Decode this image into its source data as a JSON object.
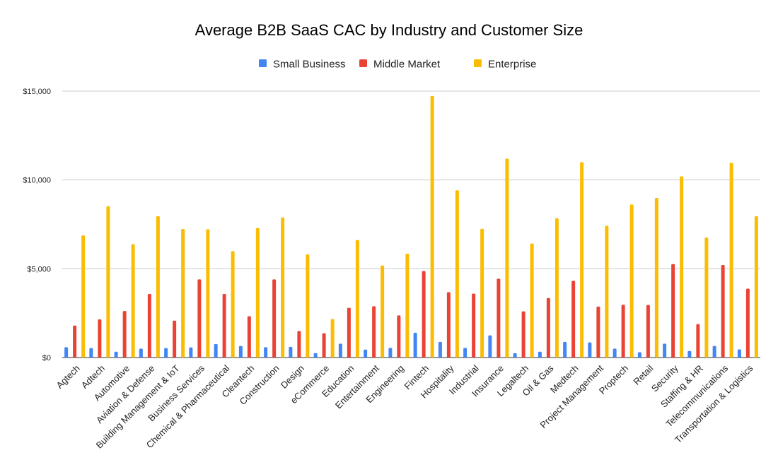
{
  "chart_data": {
    "type": "bar",
    "title": "Average B2B SaaS CAC by Industry and Customer Size",
    "xlabel": "",
    "ylabel": "",
    "ylim": [
      0,
      15000
    ],
    "yticks": [
      0,
      5000,
      10000,
      15000
    ],
    "ytick_labels": [
      "$0",
      "$5,000",
      "$10,000",
      "$15,000"
    ],
    "grid": true,
    "legend_position": "top-center",
    "categories": [
      "Agtech",
      "Adtech",
      "Automotive",
      "Aviation & Defense",
      "Building Management & IoT",
      "Business Services",
      "Chemical & Pharmaceutical",
      "Cleantech",
      "Construction",
      "Design",
      "eCommerce",
      "Education",
      "Entertainment",
      "Engineering",
      "Fintech",
      "Hospitality",
      "Industrial",
      "Insurance",
      "Legaltech",
      "Oil & Gas",
      "Medtech",
      "Project Management",
      "Proptech",
      "Retail",
      "Security",
      "Staffing & HR",
      "Telecommunications",
      "Transportation & Logistics"
    ],
    "series": [
      {
        "name": "Small Business",
        "color": "#4285f4",
        "values": [
          580,
          530,
          330,
          500,
          530,
          570,
          760,
          650,
          580,
          600,
          250,
          780,
          450,
          540,
          1400,
          880,
          540,
          1250,
          250,
          330,
          880,
          850,
          500,
          300,
          780,
          370,
          650,
          460
        ]
      },
      {
        "name": "Middle Market",
        "color": "#ea4335",
        "values": [
          1800,
          2150,
          2620,
          3580,
          2080,
          4400,
          3580,
          2330,
          4400,
          1490,
          1370,
          2800,
          2890,
          2370,
          4870,
          3680,
          3600,
          4440,
          2600,
          3350,
          4320,
          2870,
          2970,
          2960,
          5260,
          1880,
          5210,
          3880
        ]
      },
      {
        "name": "Enterprise",
        "color": "#fbbc04",
        "values": [
          6880,
          8520,
          6380,
          7960,
          7240,
          7220,
          5990,
          7290,
          7890,
          5810,
          2170,
          6620,
          5180,
          5850,
          14730,
          9420,
          7250,
          11200,
          6420,
          7840,
          11000,
          7420,
          8620,
          8990,
          10200,
          6750,
          10960,
          7960
        ]
      }
    ]
  }
}
